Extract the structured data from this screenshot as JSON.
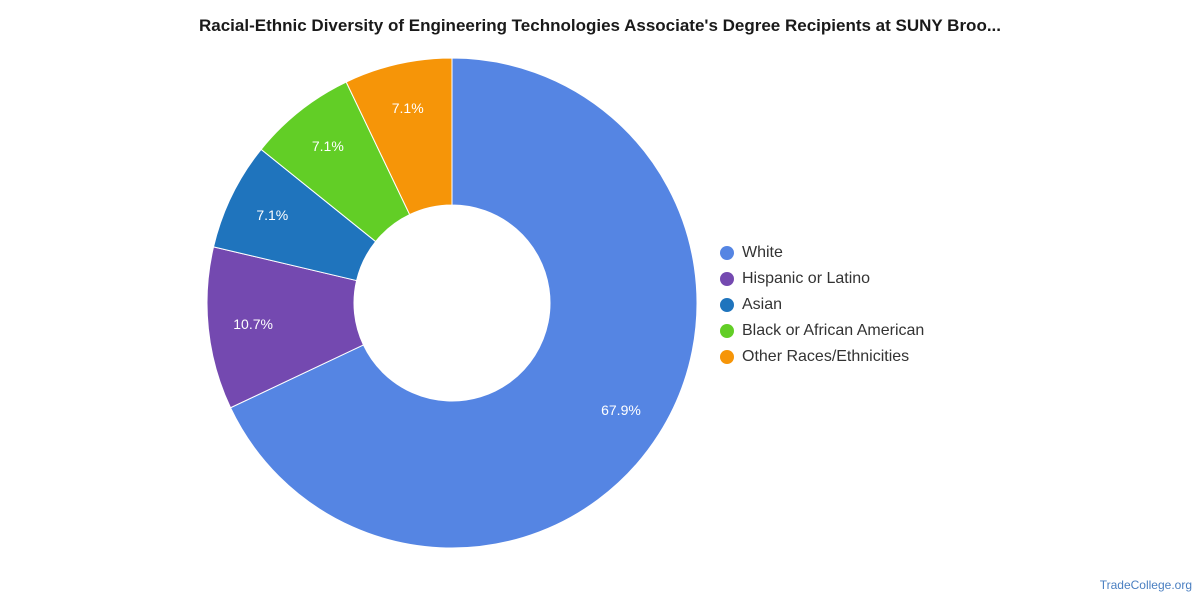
{
  "chart_data": {
    "type": "pie",
    "variant": "donut",
    "title": "Racial-Ethnic Diversity of Engineering Technologies Associate's Degree Recipients at SUNY Broo...",
    "categories": [
      "White",
      "Hispanic or Latino",
      "Asian",
      "Black or African American",
      "Other Races/Ethnicities"
    ],
    "values": [
      67.9,
      10.7,
      7.1,
      7.1,
      7.1
    ],
    "labels": [
      "67.9%",
      "10.7%",
      "7.1%",
      "7.1%",
      "7.1%"
    ],
    "colors": [
      "#5585e3",
      "#7449b0",
      "#1f74bd",
      "#62ce26",
      "#f69508"
    ],
    "legend_position": "right"
  },
  "watermark": "TradeCollege.org"
}
